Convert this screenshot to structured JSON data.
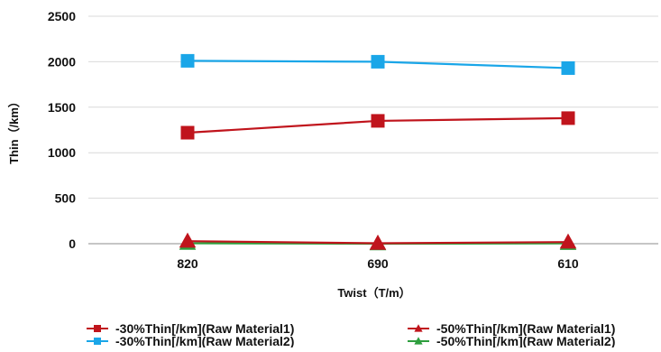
{
  "chart_data": {
    "type": "line",
    "title": "",
    "xlabel": "Twist（T/m）",
    "ylabel": "Thin（/km）",
    "categories": [
      "820",
      "690",
      "610"
    ],
    "ylim": [
      0,
      2500
    ],
    "yticks": [
      0,
      500,
      1000,
      1500,
      2000,
      2500
    ],
    "grid": "horizontal",
    "legend_position": "bottom",
    "series": [
      {
        "name": "-30%Thin[/km](Raw Material1)",
        "values": [
          1220,
          1350,
          1380
        ],
        "color": "#c0141c",
        "marker": "square"
      },
      {
        "name": "-50%Thin[/km](Raw Material1)",
        "values": [
          28,
          5,
          18
        ],
        "color": "#c0141c",
        "marker": "triangle"
      },
      {
        "name": "-30%Thin[/km](Raw Material2)",
        "values": [
          2010,
          2000,
          1930
        ],
        "color": "#1aa6e8",
        "marker": "square"
      },
      {
        "name": "-50%Thin[/km](Raw Material2)",
        "values": [
          5,
          0,
          3
        ],
        "color": "#2e9e3e",
        "marker": "triangle"
      }
    ]
  }
}
